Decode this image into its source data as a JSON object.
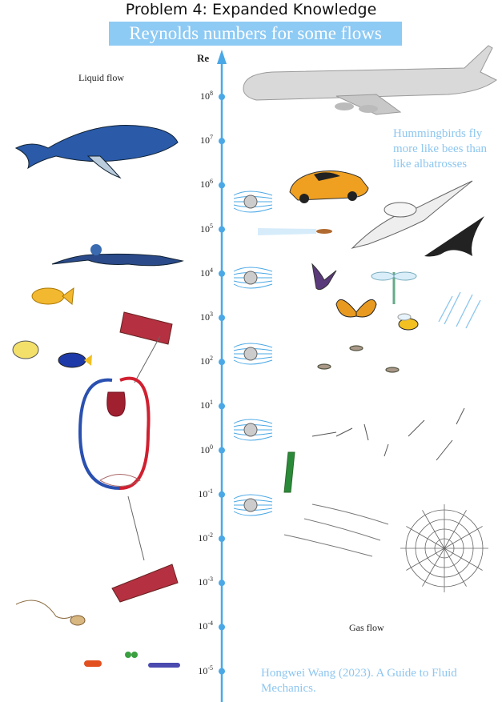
{
  "header": {
    "title": "Problem 4: Expanded Knowledge",
    "banner": "Reynolds numbers for some flows"
  },
  "axis": {
    "label": "Re",
    "color": "#4aa8e6",
    "ticks": [
      {
        "base": "10",
        "exp": "8"
      },
      {
        "base": "10",
        "exp": "7"
      },
      {
        "base": "10",
        "exp": "6"
      },
      {
        "base": "10",
        "exp": "5"
      },
      {
        "base": "10",
        "exp": "4"
      },
      {
        "base": "10",
        "exp": "3"
      },
      {
        "base": "10",
        "exp": "2"
      },
      {
        "base": "10",
        "exp": "1"
      },
      {
        "base": "10",
        "exp": "0"
      },
      {
        "base": "10",
        "exp": "-1"
      },
      {
        "base": "10",
        "exp": "-2"
      },
      {
        "base": "10",
        "exp": "-3"
      },
      {
        "base": "10",
        "exp": "-4"
      },
      {
        "base": "10",
        "exp": "-5"
      }
    ]
  },
  "labels": {
    "liquid": "Liquid flow",
    "gas": "Gas flow"
  },
  "notes": {
    "hummingbird": "Hummingbirds fly more like bees than like albatrosses",
    "citation": "Hongwei Wang (2023). A Guide to Fluid Mechanics."
  },
  "illustrations": [
    "airplane",
    "whale",
    "sports-car",
    "albatross",
    "swallow",
    "bullet",
    "swimmer",
    "goldfish",
    "hummingbird",
    "dragonfly",
    "butterfly",
    "bee",
    "raindrops",
    "tropical-fish",
    "artery",
    "heart-circulation",
    "mosquitoes",
    "dandelion-seeds",
    "spider-web",
    "vein",
    "sperm",
    "bacteria",
    "flow-around-cylinder"
  ]
}
